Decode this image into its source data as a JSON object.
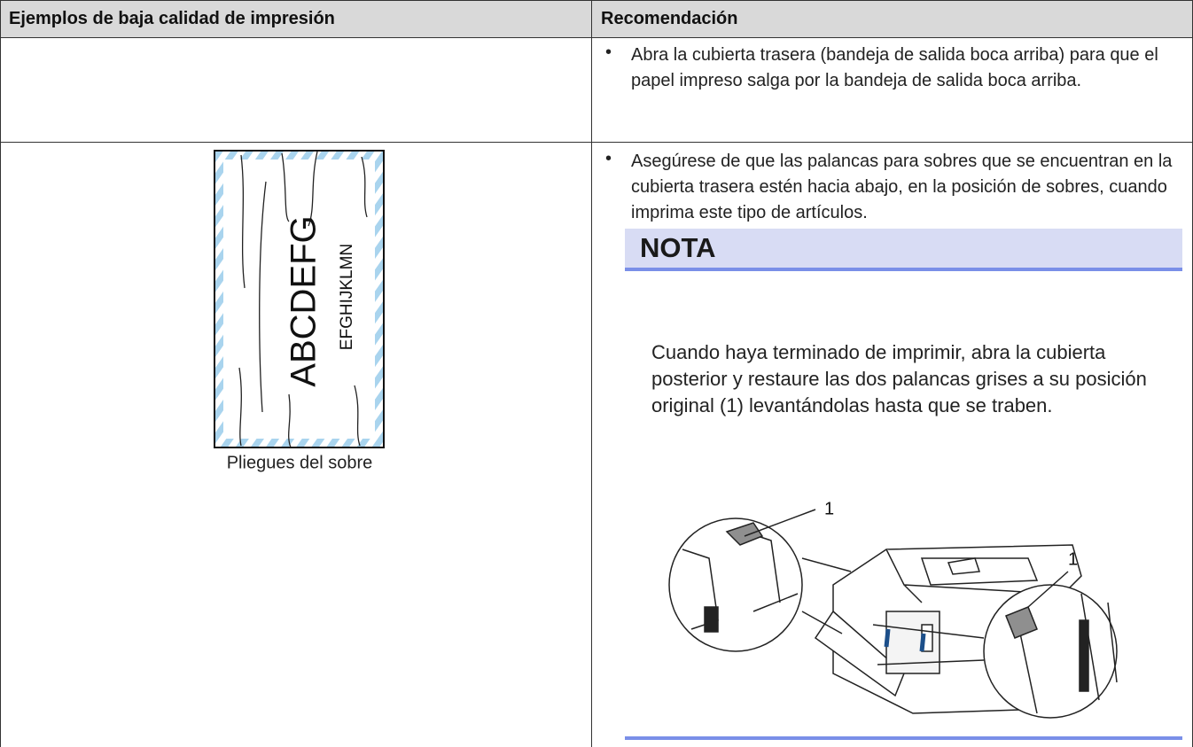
{
  "table": {
    "headers": [
      "Ejemplos de baja calidad de impresión",
      "Recomendación"
    ],
    "rows": [
      {
        "recommendation": "Abra la cubierta trasera (bandeja de salida boca arriba) para que el papel impreso salga por la bandeja de salida boca arriba."
      },
      {
        "example": {
          "envelope_text": "ABCDEFG",
          "envelope_small_text": "EFGHIJKLMN",
          "caption": "Pliegues del sobre"
        },
        "recommendation": "Asegúrese de que las palancas para sobres que se encuentran en la cubierta trasera estén hacia abajo, en la posición de sobres, cuando imprima este tipo de artículos.",
        "note": {
          "title": "NOTA",
          "text": "Cuando haya terminado de imprimir, abra la cubierta posterior y restaure las dos palancas grises a su posición original (1) levantándolas hasta que se traben.",
          "callouts": [
            "1",
            "1"
          ]
        }
      }
    ]
  }
}
